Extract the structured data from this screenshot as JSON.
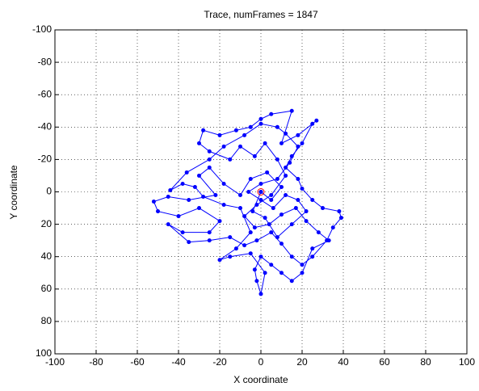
{
  "chart_data": {
    "type": "line",
    "title": "Trace, numFrames = 1847",
    "x_label": "X coordinate",
    "y_label": "Y coordinate",
    "xlim": [
      -100,
      100
    ],
    "ylim": [
      -100,
      100
    ],
    "y_reversed": true,
    "xticks": [
      -100,
      -80,
      -60,
      -40,
      -20,
      0,
      20,
      40,
      60,
      80,
      100
    ],
    "yticks": [
      -100,
      -80,
      -60,
      -40,
      -20,
      0,
      20,
      40,
      60,
      80,
      100
    ],
    "grid": true,
    "series": [
      {
        "color": "#0000ff",
        "marker": "dot",
        "line": true,
        "x": [
          0,
          5,
          10,
          3,
          -5,
          -10,
          -18,
          -25,
          -30,
          -22,
          -35,
          -45,
          -52,
          -50,
          -40,
          -30,
          -20,
          -25,
          -38,
          -45,
          -35,
          -25,
          -15,
          -8,
          -2,
          5,
          10,
          15,
          20,
          25,
          32,
          35,
          39,
          38,
          30,
          25,
          20,
          18,
          12,
          15,
          20,
          25,
          27,
          18,
          10,
          15,
          5,
          0,
          -5,
          -12,
          -20,
          -28,
          -30,
          -25,
          -15,
          -10,
          -3,
          2,
          8,
          12,
          5,
          -2,
          -8,
          -3,
          4,
          10,
          17,
          22,
          28,
          33,
          25,
          20,
          15,
          10,
          5,
          0,
          -3,
          -2,
          0,
          2,
          -5,
          -15,
          -20,
          -12,
          -5,
          -10,
          -18,
          -28,
          -32,
          -38,
          -44,
          -36,
          -25,
          -18,
          -8,
          0,
          8,
          12,
          18,
          14,
          8,
          0,
          -6,
          0,
          6,
          12,
          18,
          22,
          15,
          8,
          2,
          -4,
          0
        ],
        "y": [
          0,
          5,
          -3,
          -12,
          -8,
          2,
          -5,
          -15,
          -10,
          2,
          5,
          3,
          6,
          12,
          15,
          10,
          18,
          25,
          25,
          20,
          31,
          30,
          28,
          33,
          30,
          25,
          32,
          40,
          45,
          40,
          30,
          22,
          16,
          12,
          10,
          5,
          -2,
          -8,
          -15,
          -22,
          -30,
          -42,
          -44,
          -35,
          -30,
          -50,
          -48,
          -45,
          -40,
          -38,
          -35,
          -38,
          -30,
          -25,
          -20,
          -28,
          -22,
          -30,
          -20,
          -10,
          2,
          8,
          15,
          22,
          20,
          14,
          10,
          18,
          25,
          30,
          35,
          50,
          55,
          50,
          45,
          40,
          48,
          55,
          63,
          50,
          38,
          40,
          42,
          35,
          25,
          10,
          8,
          3,
          -3,
          -5,
          -1,
          -12,
          -20,
          -28,
          -35,
          -42,
          -40,
          -36,
          -28,
          -18,
          -8,
          -5,
          0,
          5,
          10,
          2,
          5,
          12,
          20,
          28,
          16,
          12,
          0
        ]
      },
      {
        "color": "#ff0000",
        "marker": "circle",
        "line": false,
        "x": [
          0
        ],
        "y": [
          0
        ]
      }
    ]
  }
}
